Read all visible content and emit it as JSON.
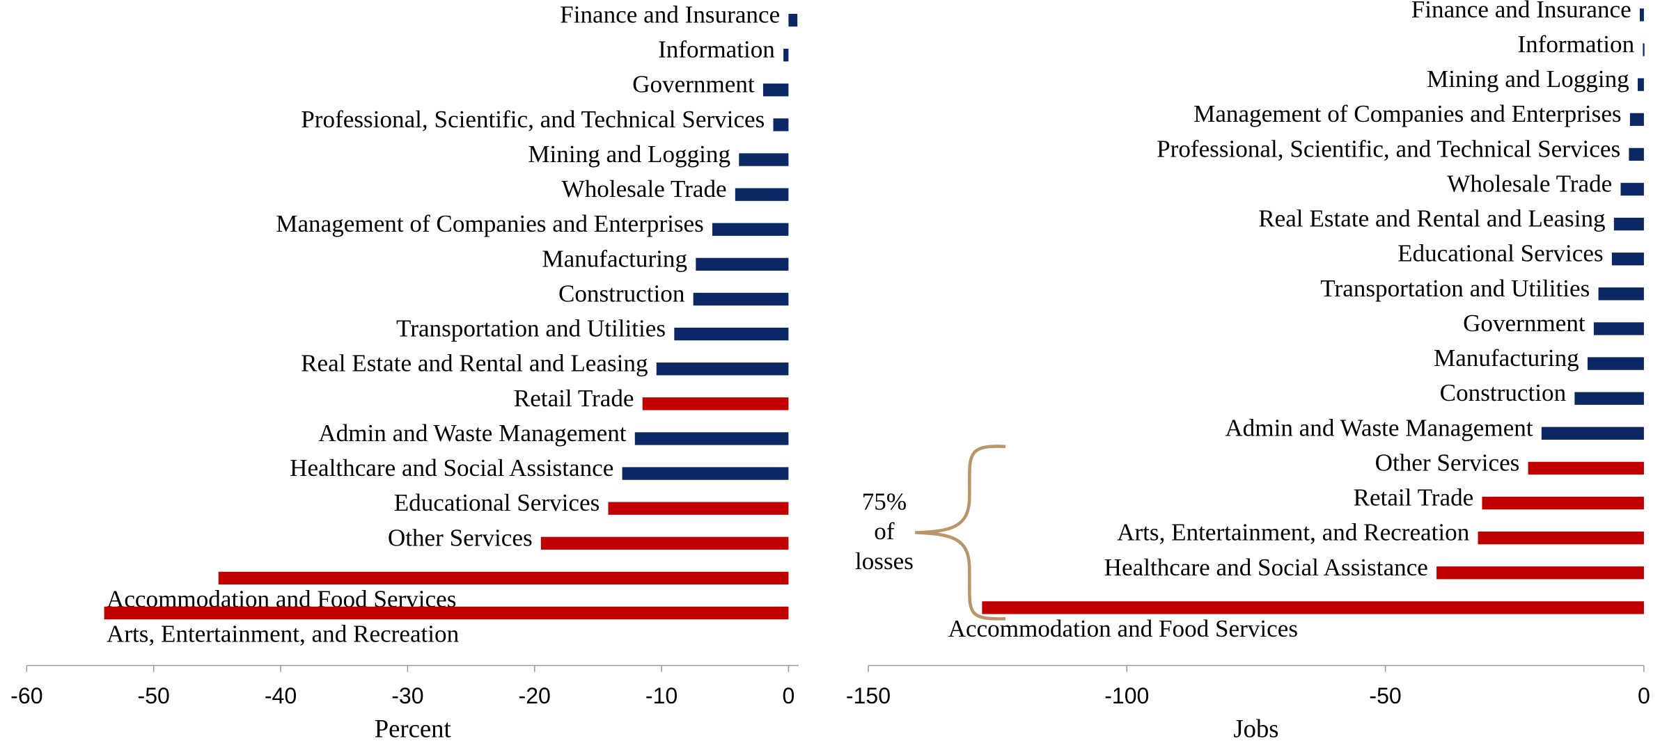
{
  "chart_data": [
    {
      "type": "barh",
      "xlabel": "Percent",
      "categories": [
        "Finance and Insurance",
        "Information",
        "Government",
        "Professional, Scientific, and Technical Services",
        "Mining and Logging",
        "Wholesale Trade",
        "Management of Companies and Enterprises",
        "Manufacturing",
        "Construction",
        "Transportation and Utilities",
        "Real Estate and Rental and Leasing",
        "Retail Trade",
        "Admin and Waste Management",
        "Healthcare and Social Assistance",
        "Educational Services",
        "Other Services",
        "Accommodation and Food Services",
        "Arts, Entertainment, and Recreation"
      ],
      "values": [
        0.7,
        -0.4,
        -2,
        -1.2,
        -3.9,
        -4.2,
        -6,
        -7.3,
        -7.5,
        -9,
        -10.4,
        -11.5,
        -12.1,
        -13.1,
        -14.2,
        -19.5,
        -44.9,
        -53.9
      ],
      "colors": [
        "#0b2865",
        "#0b2865",
        "#0b2865",
        "#0b2865",
        "#0b2865",
        "#0b2865",
        "#0b2865",
        "#0b2865",
        "#0b2865",
        "#0b2865",
        "#0b2865",
        "#c00000",
        "#0b2865",
        "#0b2865",
        "#c00000",
        "#c00000",
        "#c00000",
        "#c00000"
      ],
      "xlim": [
        -60,
        0.8
      ],
      "xticks": [
        -60,
        -50,
        -40,
        -30,
        -20,
        -10,
        0
      ]
    },
    {
      "type": "barh",
      "xlabel": "Jobs",
      "categories": [
        "Finance and Insurance",
        "Information",
        "Mining and Logging",
        "Management of Companies and Enterprises",
        "Professional, Scientific, and Technical Services",
        "Wholesale Trade",
        "Real Estate and Rental and Leasing",
        "Educational Services",
        "Transportation and Utilities",
        "Government",
        "Manufacturing",
        "Construction",
        "Admin and Waste Management",
        "Other Services",
        "Retail Trade",
        "Arts, Entertainment, and Recreation",
        "Healthcare and Social Assistance",
        "Accommodation and Food Services"
      ],
      "values": [
        -0.8,
        -0.2,
        -1.2,
        -2.7,
        -2.9,
        -4.5,
        -5.8,
        -6.2,
        -8.8,
        -9.7,
        -10.9,
        -13.4,
        -19.8,
        -22.4,
        -31.3,
        -32.1,
        -40.1,
        -128
      ],
      "colors": [
        "#0b2865",
        "#0b2865",
        "#0b2865",
        "#0b2865",
        "#0b2865",
        "#0b2865",
        "#0b2865",
        "#0b2865",
        "#0b2865",
        "#0b2865",
        "#0b2865",
        "#0b2865",
        "#0b2865",
        "#c00000",
        "#c00000",
        "#c00000",
        "#c00000",
        "#c00000"
      ],
      "xlim": [
        -150,
        0
      ],
      "xticks": [
        -150,
        -100,
        -50,
        0
      ],
      "annotation": [
        "75%",
        "of",
        "losses"
      ]
    }
  ]
}
